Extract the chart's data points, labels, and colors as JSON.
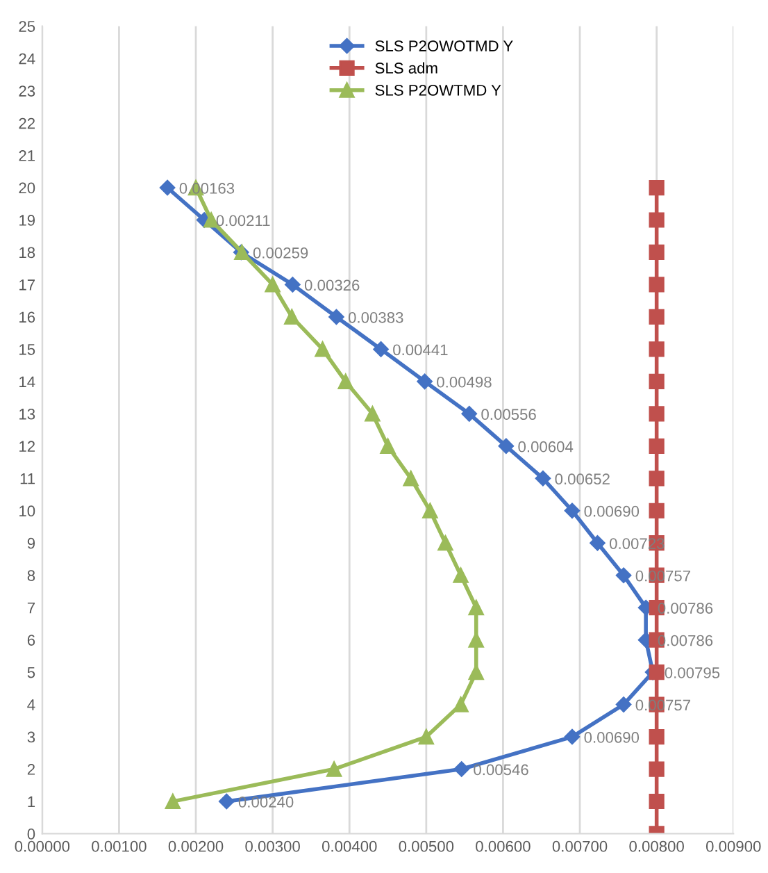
{
  "chart_data": {
    "type": "line",
    "orientation": "horizontal",
    "xlim": [
      0,
      0.009
    ],
    "ylim": [
      0,
      25
    ],
    "xticks": [
      {
        "value": 0,
        "label": "0.00000"
      },
      {
        "value": 0.001,
        "label": "0.00100"
      },
      {
        "value": 0.002,
        "label": "0.00200"
      },
      {
        "value": 0.003,
        "label": "0.00300"
      },
      {
        "value": 0.004,
        "label": "0.00400"
      },
      {
        "value": 0.005,
        "label": "0.00500"
      },
      {
        "value": 0.006,
        "label": "0.00600"
      },
      {
        "value": 0.007,
        "label": "0.00700"
      },
      {
        "value": 0.008,
        "label": "0.00800"
      },
      {
        "value": 0.009,
        "label": "0.00900"
      }
    ],
    "yticks": [
      0,
      1,
      2,
      3,
      4,
      5,
      6,
      7,
      8,
      9,
      10,
      11,
      12,
      13,
      14,
      15,
      16,
      17,
      18,
      19,
      20,
      21,
      22,
      23,
      24,
      25
    ],
    "grid": "x",
    "legend": "top",
    "line_style": "solid",
    "series": [
      {
        "name": "SLS P2OWOTMD Y",
        "color": "#4472c4",
        "marker": "diamond",
        "values": [
          0.0024,
          0.00546,
          0.0069,
          0.00757,
          0.00795,
          0.00786,
          0.00786,
          0.00757,
          0.00723,
          0.0069,
          0.00652,
          0.00604,
          0.00556,
          0.00498,
          0.00441,
          0.00383,
          0.00326,
          0.00259,
          0.00211,
          0.00163
        ],
        "x": [
          1,
          2,
          3,
          4,
          5,
          6,
          7,
          8,
          9,
          10,
          11,
          12,
          13,
          14,
          15,
          16,
          17,
          18,
          19,
          20
        ],
        "value_labels": [
          "0.00240",
          "0.00546",
          "0.00690",
          "0.00757",
          "0.00795",
          "0.00786",
          "0.00786",
          "0.00757",
          "0.00723",
          "0.00690",
          "0.00652",
          "0.00604",
          "0.00556",
          "0.00498",
          "0.00441",
          "0.00383",
          "0.00326",
          "0.00259",
          "0.00211",
          "0.00163"
        ]
      },
      {
        "name": "SLS adm",
        "color": "#c0504d",
        "marker": "square",
        "values": [
          0.008,
          0.008,
          0.008,
          0.008,
          0.008,
          0.008,
          0.008,
          0.008,
          0.008,
          0.008,
          0.008,
          0.008,
          0.008,
          0.008,
          0.008,
          0.008,
          0.008,
          0.008,
          0.008,
          0.008,
          0.008
        ],
        "x": [
          0,
          1,
          2,
          3,
          4,
          5,
          6,
          7,
          8,
          9,
          10,
          11,
          12,
          13,
          14,
          15,
          16,
          17,
          18,
          19,
          20
        ]
      },
      {
        "name": "SLS P2OWTMD Y",
        "color": "#9bbb59",
        "marker": "triangle",
        "values": [
          0.0017,
          0.0038,
          0.005,
          0.00545,
          0.00565,
          0.00565,
          0.00565,
          0.00545,
          0.00525,
          0.00505,
          0.0048,
          0.0045,
          0.0043,
          0.00395,
          0.00365,
          0.00325,
          0.003,
          0.0026,
          0.0022,
          0.002
        ],
        "x": [
          1,
          2,
          3,
          4,
          5,
          6,
          7,
          8,
          9,
          10,
          11,
          12,
          13,
          14,
          15,
          16,
          17,
          18,
          19,
          20
        ]
      }
    ]
  }
}
